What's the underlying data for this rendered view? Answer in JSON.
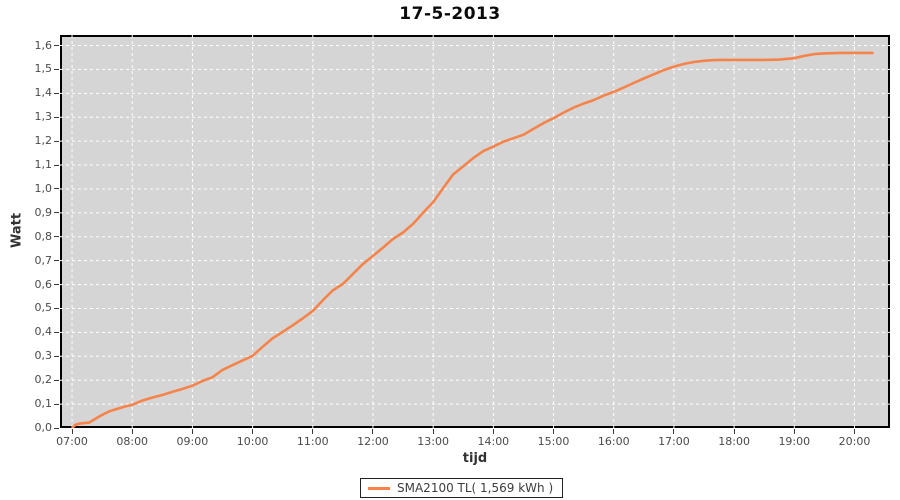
{
  "colors": {
    "series_orange": "#f5834a",
    "plot_background": "#d5d5d5",
    "gridline_white": "#ffffff",
    "plot_border_black": "#000000",
    "tick_text_gray": "#4a4a4a",
    "page_background": "#ffffff"
  },
  "chart_data": {
    "type": "line",
    "title": "17-5-2013",
    "xlabel": "tijd",
    "ylabel": "Watt",
    "legend": [
      {
        "label": "SMA2100 TL( 1,569 kWh )",
        "color": "#f5834a"
      }
    ],
    "legend_position": "bottom-center",
    "grid": "white dashed, horizontal every 0.1 and vertical every hour, on gray plot background",
    "xlim_hours": [
      6.8,
      20.59
    ],
    "ylim": [
      0,
      1.644
    ],
    "x_ticks": [
      {
        "h": 7,
        "label": "07:00"
      },
      {
        "h": 8,
        "label": "08:00"
      },
      {
        "h": 9,
        "label": "09:00"
      },
      {
        "h": 10,
        "label": "10:00"
      },
      {
        "h": 11,
        "label": "11:00"
      },
      {
        "h": 12,
        "label": "12:00"
      },
      {
        "h": 13,
        "label": "13:00"
      },
      {
        "h": 14,
        "label": "14:00"
      },
      {
        "h": 15,
        "label": "15:00"
      },
      {
        "h": 16,
        "label": "16:00"
      },
      {
        "h": 17,
        "label": "17:00"
      },
      {
        "h": 18,
        "label": "18:00"
      },
      {
        "h": 19,
        "label": "19:00"
      },
      {
        "h": 20,
        "label": "20:00"
      }
    ],
    "y_ticks": [
      {
        "v": 0.0,
        "label": "0,0"
      },
      {
        "v": 0.1,
        "label": "0,1"
      },
      {
        "v": 0.2,
        "label": "0,2"
      },
      {
        "v": 0.3,
        "label": "0,3"
      },
      {
        "v": 0.4,
        "label": "0,4"
      },
      {
        "v": 0.5,
        "label": "0,5"
      },
      {
        "v": 0.6,
        "label": "0,6"
      },
      {
        "v": 0.7,
        "label": "0,7"
      },
      {
        "v": 0.8,
        "label": "0,8"
      },
      {
        "v": 0.9,
        "label": "0,9"
      },
      {
        "v": 1.0,
        "label": "1,0"
      },
      {
        "v": 1.1,
        "label": "1,1"
      },
      {
        "v": 1.2,
        "label": "1,2"
      },
      {
        "v": 1.3,
        "label": "1,3"
      },
      {
        "v": 1.4,
        "label": "1,4"
      },
      {
        "v": 1.5,
        "label": "1,5"
      },
      {
        "v": 1.6,
        "label": "1,6"
      }
    ],
    "series": [
      {
        "name": "SMA2100 TL",
        "total_kwh_label": "1,569 kWh",
        "color": "#f5834a",
        "points": [
          [
            7.02,
            0.005
          ],
          [
            7.07,
            0.015
          ],
          [
            7.17,
            0.02
          ],
          [
            7.28,
            0.022
          ],
          [
            7.4,
            0.04
          ],
          [
            7.5,
            0.055
          ],
          [
            7.62,
            0.07
          ],
          [
            7.75,
            0.08
          ],
          [
            7.88,
            0.09
          ],
          [
            8.0,
            0.097
          ],
          [
            8.17,
            0.115
          ],
          [
            8.33,
            0.127
          ],
          [
            8.5,
            0.138
          ],
          [
            8.67,
            0.152
          ],
          [
            8.83,
            0.163
          ],
          [
            9.0,
            0.177
          ],
          [
            9.17,
            0.197
          ],
          [
            9.33,
            0.212
          ],
          [
            9.5,
            0.243
          ],
          [
            9.67,
            0.263
          ],
          [
            9.83,
            0.282
          ],
          [
            10.0,
            0.302
          ],
          [
            10.17,
            0.34
          ],
          [
            10.33,
            0.375
          ],
          [
            10.5,
            0.402
          ],
          [
            10.67,
            0.43
          ],
          [
            10.83,
            0.458
          ],
          [
            11.0,
            0.49
          ],
          [
            11.17,
            0.535
          ],
          [
            11.33,
            0.575
          ],
          [
            11.5,
            0.603
          ],
          [
            11.67,
            0.645
          ],
          [
            11.83,
            0.685
          ],
          [
            12.0,
            0.72
          ],
          [
            12.17,
            0.755
          ],
          [
            12.33,
            0.79
          ],
          [
            12.5,
            0.818
          ],
          [
            12.67,
            0.855
          ],
          [
            12.83,
            0.9
          ],
          [
            13.0,
            0.945
          ],
          [
            13.17,
            1.005
          ],
          [
            13.33,
            1.06
          ],
          [
            13.5,
            1.095
          ],
          [
            13.67,
            1.13
          ],
          [
            13.83,
            1.158
          ],
          [
            14.0,
            1.177
          ],
          [
            14.17,
            1.198
          ],
          [
            14.33,
            1.212
          ],
          [
            14.5,
            1.227
          ],
          [
            14.67,
            1.252
          ],
          [
            14.83,
            1.275
          ],
          [
            15.0,
            1.296
          ],
          [
            15.17,
            1.32
          ],
          [
            15.33,
            1.34
          ],
          [
            15.5,
            1.357
          ],
          [
            15.67,
            1.372
          ],
          [
            15.83,
            1.39
          ],
          [
            16.0,
            1.406
          ],
          [
            16.17,
            1.425
          ],
          [
            16.33,
            1.443
          ],
          [
            16.5,
            1.462
          ],
          [
            16.67,
            1.48
          ],
          [
            16.83,
            1.497
          ],
          [
            17.0,
            1.512
          ],
          [
            17.17,
            1.523
          ],
          [
            17.33,
            1.531
          ],
          [
            17.5,
            1.536
          ],
          [
            17.67,
            1.539
          ],
          [
            17.83,
            1.54
          ],
          [
            18.0,
            1.54
          ],
          [
            18.25,
            1.54
          ],
          [
            18.5,
            1.54
          ],
          [
            18.75,
            1.541
          ],
          [
            19.0,
            1.547
          ],
          [
            19.17,
            1.557
          ],
          [
            19.33,
            1.564
          ],
          [
            19.5,
            1.567
          ],
          [
            19.75,
            1.569
          ],
          [
            20.0,
            1.569
          ],
          [
            20.3,
            1.569
          ]
        ]
      }
    ]
  }
}
